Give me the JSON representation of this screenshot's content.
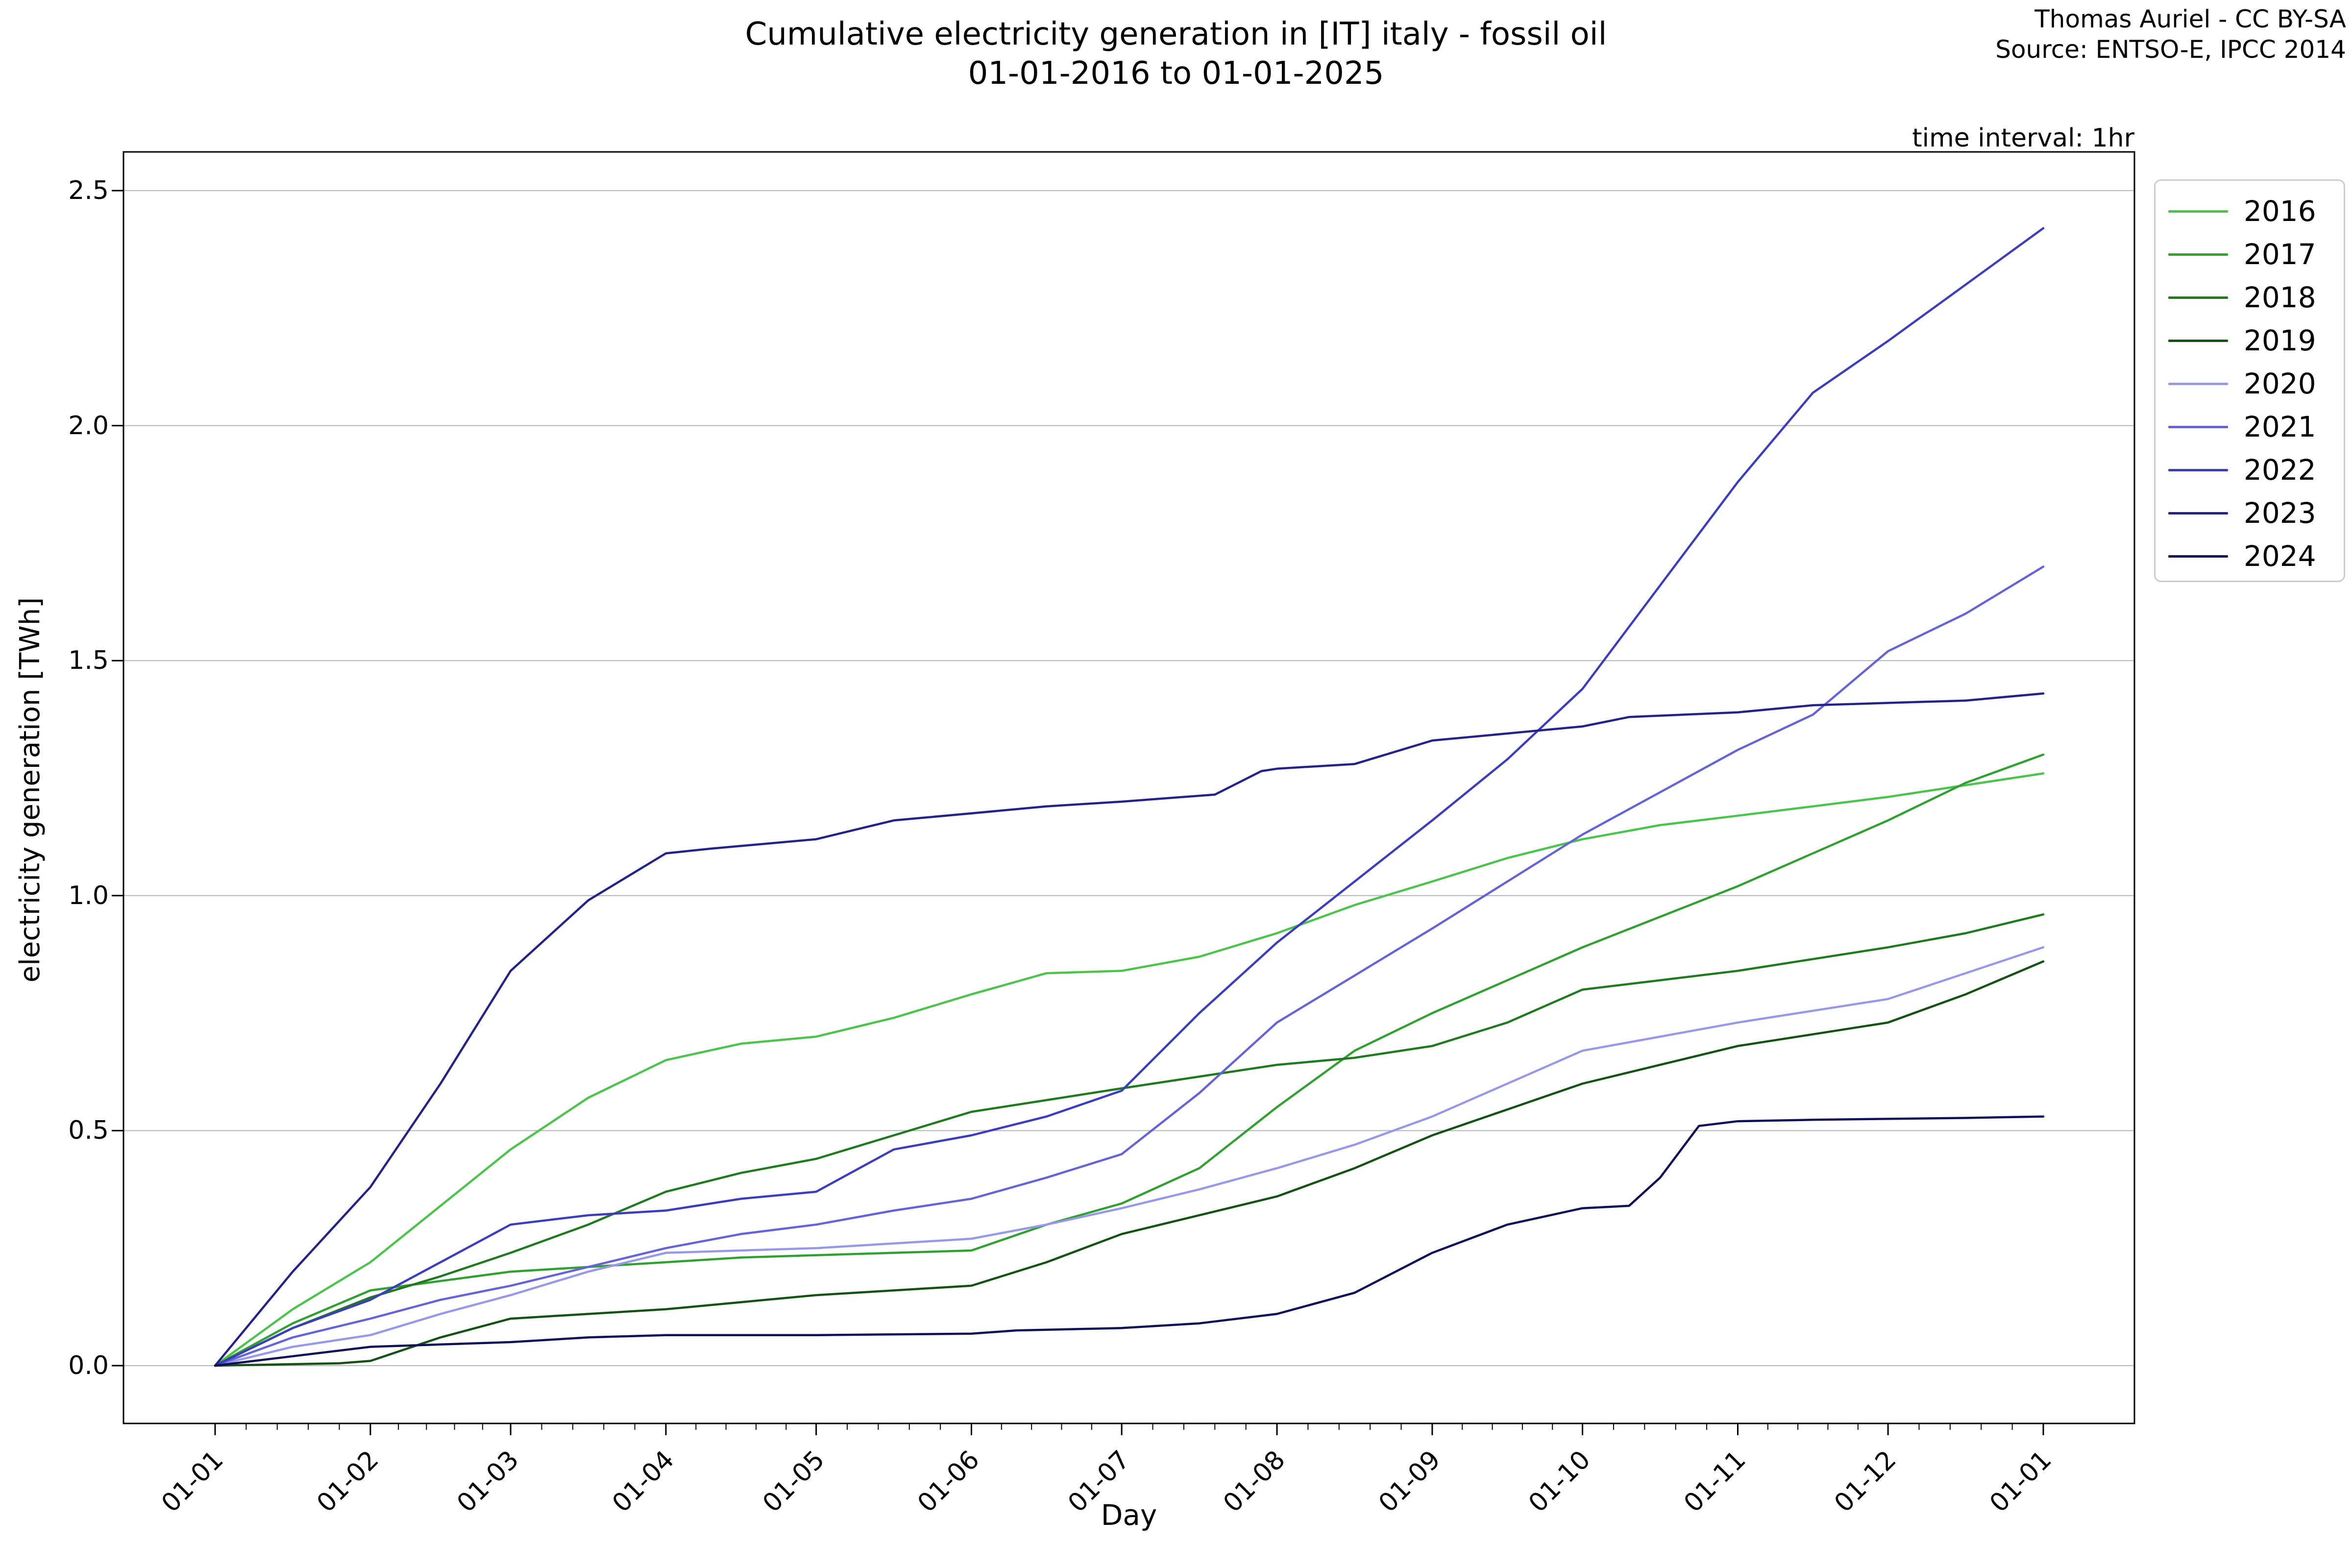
{
  "figure": {
    "title_line1": "Cumulative electricity generation in [IT] italy - fossil oil",
    "title_line2": "01-01-2016 to 01-01-2025",
    "attribution_line1": "Thomas Auriel - CC BY-SA",
    "attribution_line2": "Source: ENTSO-E, IPCC 2014",
    "interval_label": "time interval: 1hr"
  },
  "chart_data": {
    "type": "line",
    "title": "Cumulative electricity generation in [IT] italy - fossil oil 01-01-2016 to 01-01-2025",
    "xlabel": "Day",
    "ylabel": "electricity generation [TWh]",
    "grid": true,
    "legend_position": "upper right",
    "y_ticks": [
      0.0,
      0.5,
      1.0,
      1.5,
      2.0,
      2.5
    ],
    "y_tick_labels": [
      "0.0",
      "0.5",
      "1.0",
      "1.5",
      "2.0",
      "2.5"
    ],
    "ylim": [
      0,
      2.5
    ],
    "x_tick_labels": [
      "01-01",
      "01-02",
      "01-03",
      "01-04",
      "01-05",
      "01-06",
      "01-07",
      "01-08",
      "01-09",
      "01-10",
      "01-11",
      "01-12",
      "01-01"
    ],
    "x_axis_note": "months of one year, cumulative TWh; points given as [month_index 0-12, TWh]",
    "series": [
      {
        "name": "2016",
        "color": "#4bc44b",
        "points": [
          [
            0,
            0
          ],
          [
            0.5,
            0.12
          ],
          [
            1,
            0.22
          ],
          [
            1.5,
            0.34
          ],
          [
            2,
            0.46
          ],
          [
            2.5,
            0.57
          ],
          [
            3,
            0.65
          ],
          [
            3.5,
            0.685
          ],
          [
            4,
            0.7
          ],
          [
            4.5,
            0.74
          ],
          [
            5,
            0.79
          ],
          [
            5.5,
            0.835
          ],
          [
            6,
            0.84
          ],
          [
            6.5,
            0.87
          ],
          [
            7,
            0.92
          ],
          [
            7.5,
            0.98
          ],
          [
            8,
            1.03
          ],
          [
            8.5,
            1.08
          ],
          [
            9,
            1.12
          ],
          [
            9.5,
            1.15
          ],
          [
            10,
            1.17
          ],
          [
            10.5,
            1.19
          ],
          [
            11,
            1.21
          ],
          [
            11.5,
            1.235
          ],
          [
            12,
            1.26
          ]
        ]
      },
      {
        "name": "2017",
        "color": "#30a030",
        "points": [
          [
            0,
            0
          ],
          [
            0.5,
            0.09
          ],
          [
            1,
            0.16
          ],
          [
            1.5,
            0.18
          ],
          [
            2,
            0.2
          ],
          [
            2.5,
            0.21
          ],
          [
            3,
            0.22
          ],
          [
            3.5,
            0.23
          ],
          [
            4,
            0.235
          ],
          [
            4.5,
            0.24
          ],
          [
            5,
            0.245
          ],
          [
            5.5,
            0.3
          ],
          [
            6,
            0.345
          ],
          [
            6.5,
            0.42
          ],
          [
            7,
            0.55
          ],
          [
            7.5,
            0.67
          ],
          [
            8,
            0.75
          ],
          [
            8.5,
            0.82
          ],
          [
            9,
            0.89
          ],
          [
            9.5,
            0.955
          ],
          [
            10,
            1.02
          ],
          [
            10.5,
            1.09
          ],
          [
            11,
            1.16
          ],
          [
            11.5,
            1.24
          ],
          [
            12,
            1.3
          ]
        ]
      },
      {
        "name": "2018",
        "color": "#1f7a1f",
        "points": [
          [
            0,
            0
          ],
          [
            0.5,
            0.08
          ],
          [
            1,
            0.145
          ],
          [
            1.5,
            0.19
          ],
          [
            2,
            0.24
          ],
          [
            2.5,
            0.3
          ],
          [
            3,
            0.37
          ],
          [
            3.5,
            0.41
          ],
          [
            4,
            0.44
          ],
          [
            4.5,
            0.49
          ],
          [
            5,
            0.54
          ],
          [
            5.5,
            0.565
          ],
          [
            6,
            0.59
          ],
          [
            6.5,
            0.615
          ],
          [
            7,
            0.64
          ],
          [
            7.5,
            0.655
          ],
          [
            8,
            0.68
          ],
          [
            8.5,
            0.73
          ],
          [
            9,
            0.8
          ],
          [
            9.5,
            0.82
          ],
          [
            10,
            0.84
          ],
          [
            10.5,
            0.865
          ],
          [
            11,
            0.89
          ],
          [
            11.5,
            0.92
          ],
          [
            12,
            0.96
          ]
        ]
      },
      {
        "name": "2019",
        "color": "#145214",
        "points": [
          [
            0,
            0
          ],
          [
            0.8,
            0.005
          ],
          [
            1,
            0.01
          ],
          [
            1.5,
            0.06
          ],
          [
            2,
            0.1
          ],
          [
            2.5,
            0.11
          ],
          [
            3,
            0.12
          ],
          [
            3.5,
            0.135
          ],
          [
            4,
            0.15
          ],
          [
            4.5,
            0.16
          ],
          [
            5,
            0.17
          ],
          [
            5.5,
            0.22
          ],
          [
            6,
            0.28
          ],
          [
            6.5,
            0.32
          ],
          [
            7,
            0.36
          ],
          [
            7.5,
            0.42
          ],
          [
            8,
            0.49
          ],
          [
            8.5,
            0.545
          ],
          [
            9,
            0.6
          ],
          [
            9.5,
            0.64
          ],
          [
            10,
            0.68
          ],
          [
            10.5,
            0.705
          ],
          [
            11,
            0.73
          ],
          [
            11.5,
            0.79
          ],
          [
            12,
            0.86
          ]
        ]
      },
      {
        "name": "2020",
        "color": "#9898e8",
        "points": [
          [
            0,
            0
          ],
          [
            0.5,
            0.04
          ],
          [
            1,
            0.065
          ],
          [
            1.5,
            0.11
          ],
          [
            2,
            0.15
          ],
          [
            2.5,
            0.2
          ],
          [
            3,
            0.24
          ],
          [
            3.5,
            0.245
          ],
          [
            4,
            0.25
          ],
          [
            4.5,
            0.26
          ],
          [
            5,
            0.27
          ],
          [
            5.5,
            0.3
          ],
          [
            6,
            0.335
          ],
          [
            6.5,
            0.375
          ],
          [
            7,
            0.42
          ],
          [
            7.5,
            0.47
          ],
          [
            8,
            0.53
          ],
          [
            8.5,
            0.6
          ],
          [
            9,
            0.67
          ],
          [
            9.5,
            0.7
          ],
          [
            10,
            0.73
          ],
          [
            10.5,
            0.755
          ],
          [
            11,
            0.78
          ],
          [
            11.5,
            0.835
          ],
          [
            12,
            0.89
          ]
        ]
      },
      {
        "name": "2021",
        "color": "#6464d8",
        "points": [
          [
            0,
            0
          ],
          [
            0.5,
            0.06
          ],
          [
            1,
            0.1
          ],
          [
            1.5,
            0.14
          ],
          [
            2,
            0.17
          ],
          [
            2.5,
            0.21
          ],
          [
            3,
            0.25
          ],
          [
            3.5,
            0.28
          ],
          [
            4,
            0.3
          ],
          [
            4.5,
            0.33
          ],
          [
            5,
            0.355
          ],
          [
            5.5,
            0.4
          ],
          [
            6,
            0.45
          ],
          [
            6.5,
            0.58
          ],
          [
            7,
            0.73
          ],
          [
            7.5,
            0.83
          ],
          [
            8,
            0.93
          ],
          [
            8.5,
            1.03
          ],
          [
            9,
            1.13
          ],
          [
            9.5,
            1.22
          ],
          [
            10,
            1.31
          ],
          [
            10.5,
            1.385
          ],
          [
            11,
            1.52
          ],
          [
            11.5,
            1.6
          ],
          [
            12,
            1.7
          ]
        ]
      },
      {
        "name": "2022",
        "color": "#3c3cc0",
        "points": [
          [
            0,
            0
          ],
          [
            0.5,
            0.08
          ],
          [
            1,
            0.14
          ],
          [
            1.5,
            0.22
          ],
          [
            2,
            0.3
          ],
          [
            2.5,
            0.32
          ],
          [
            3,
            0.33
          ],
          [
            3.5,
            0.355
          ],
          [
            4,
            0.37
          ],
          [
            4.5,
            0.46
          ],
          [
            5,
            0.49
          ],
          [
            5.5,
            0.53
          ],
          [
            6,
            0.585
          ],
          [
            6.5,
            0.75
          ],
          [
            7,
            0.9
          ],
          [
            7.5,
            1.03
          ],
          [
            8,
            1.16
          ],
          [
            8.5,
            1.29
          ],
          [
            9,
            1.44
          ],
          [
            9.5,
            1.66
          ],
          [
            10,
            1.88
          ],
          [
            10.5,
            2.07
          ],
          [
            11,
            2.18
          ],
          [
            11.5,
            2.3
          ],
          [
            12,
            2.42
          ]
        ]
      },
      {
        "name": "2023",
        "color": "#222288",
        "points": [
          [
            0,
            0
          ],
          [
            0.5,
            0.2
          ],
          [
            1,
            0.38
          ],
          [
            1.5,
            0.6
          ],
          [
            2,
            0.84
          ],
          [
            2.5,
            0.99
          ],
          [
            3,
            1.09
          ],
          [
            3.3,
            1.1
          ],
          [
            4,
            1.12
          ],
          [
            4.5,
            1.16
          ],
          [
            5,
            1.175
          ],
          [
            5.5,
            1.19
          ],
          [
            6,
            1.2
          ],
          [
            6.6,
            1.215
          ],
          [
            6.9,
            1.265
          ],
          [
            7,
            1.27
          ],
          [
            7.5,
            1.28
          ],
          [
            8,
            1.33
          ],
          [
            8.5,
            1.345
          ],
          [
            9,
            1.36
          ],
          [
            9.3,
            1.38
          ],
          [
            10,
            1.39
          ],
          [
            10.5,
            1.405
          ],
          [
            11,
            1.41
          ],
          [
            11.5,
            1.415
          ],
          [
            12,
            1.43
          ]
        ]
      },
      {
        "name": "2024",
        "color": "#0f0f58",
        "points": [
          [
            0,
            0
          ],
          [
            0.5,
            0.02
          ],
          [
            1,
            0.04
          ],
          [
            1.5,
            0.045
          ],
          [
            2,
            0.05
          ],
          [
            2.5,
            0.06
          ],
          [
            3,
            0.065
          ],
          [
            4,
            0.065
          ],
          [
            5,
            0.068
          ],
          [
            5.3,
            0.075
          ],
          [
            6,
            0.08
          ],
          [
            6.5,
            0.09
          ],
          [
            7,
            0.11
          ],
          [
            7.5,
            0.155
          ],
          [
            8,
            0.24
          ],
          [
            8.5,
            0.3
          ],
          [
            9,
            0.335
          ],
          [
            9.3,
            0.34
          ],
          [
            9.5,
            0.4
          ],
          [
            9.75,
            0.51
          ],
          [
            10,
            0.52
          ],
          [
            10.5,
            0.523
          ],
          [
            11,
            0.525
          ],
          [
            11.5,
            0.527
          ],
          [
            12,
            0.53
          ]
        ]
      }
    ]
  }
}
